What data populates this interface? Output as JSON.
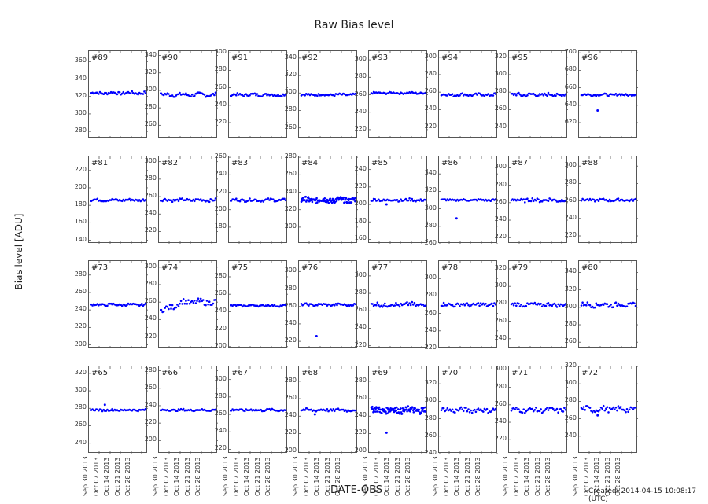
{
  "chart_data": {
    "type": "scatter",
    "title": "Raw Bias level",
    "xlabel": "DATE-OBS",
    "ylabel": "Bias level [ADU]",
    "footer": "Created: 2014-04-15 10:08:17 (UTC)",
    "x_ticks": [
      "Sep 30 2013",
      "Oct 07 2013",
      "Oct 14 2013",
      "Oct 21 2013",
      "Oct 28 2013"
    ],
    "marker_color": "#0000ff",
    "grid": false,
    "panels": [
      {
        "label": "#89",
        "yticks": [
          280,
          300,
          320,
          340,
          360
        ],
        "ylim": [
          272,
          372
        ],
        "level": 324,
        "noise": 1.5
      },
      {
        "label": "#90",
        "yticks": [
          260,
          280,
          300,
          320,
          340
        ],
        "ylim": [
          245,
          345
        ],
        "level": 295,
        "noise": 2
      },
      {
        "label": "#91",
        "yticks": [
          220,
          240,
          260,
          280,
          300
        ],
        "ylim": [
          202,
          302
        ],
        "level": 252,
        "noise": 1.5
      },
      {
        "label": "#92",
        "yticks": [
          260,
          280,
          300,
          320,
          340
        ],
        "ylim": [
          248,
          348
        ],
        "level": 298,
        "noise": 1.2
      },
      {
        "label": "#93",
        "yticks": [
          220,
          240,
          260,
          280,
          300
        ],
        "ylim": [
          210,
          310
        ],
        "level": 262,
        "noise": 1
      },
      {
        "label": "#94",
        "yticks": [
          220,
          240,
          260,
          280,
          300
        ],
        "ylim": [
          207,
          307
        ],
        "level": 257,
        "noise": 1.5
      },
      {
        "label": "#95",
        "yticks": [
          240,
          260,
          280,
          300,
          320
        ],
        "ylim": [
          227,
          327
        ],
        "level": 277,
        "noise": 2
      },
      {
        "label": "#96",
        "yticks": [
          620,
          640,
          660,
          680,
          700
        ],
        "ylim": [
          602,
          702
        ],
        "level": 652,
        "noise": 1.2,
        "outliers": [
          [
            0.3,
            634
          ]
        ]
      },
      {
        "label": "#81",
        "yticks": [
          140,
          160,
          180,
          200,
          220
        ],
        "ylim": [
          136,
          236
        ],
        "level": 186,
        "noise": 1.3
      },
      {
        "label": "#82",
        "yticks": [
          220,
          240,
          260,
          280,
          300
        ],
        "ylim": [
          206,
          306
        ],
        "level": 256,
        "noise": 1.5
      },
      {
        "label": "#83",
        "yticks": [
          180,
          200,
          220,
          240,
          260
        ],
        "ylim": [
          161,
          261
        ],
        "level": 211,
        "noise": 1.5
      },
      {
        "label": "#84",
        "yticks": [
          200,
          220,
          240,
          260,
          280
        ],
        "ylim": [
          181,
          281
        ],
        "level": 231,
        "noise": 3,
        "dense": true
      },
      {
        "label": "#85",
        "yticks": [
          160,
          180,
          200,
          220,
          240
        ],
        "ylim": [
          155,
          255
        ],
        "level": 205,
        "noise": 1.5,
        "outliers": [
          [
            0.28,
            200
          ]
        ]
      },
      {
        "label": "#86",
        "yticks": [
          260,
          280,
          300,
          320,
          340
        ],
        "ylim": [
          260,
          360
        ],
        "level": 310,
        "noise": 1,
        "outliers": [
          [
            0.28,
            289
          ]
        ]
      },
      {
        "label": "#87",
        "yticks": [
          220,
          240,
          260,
          280,
          300
        ],
        "ylim": [
          213,
          313
        ],
        "level": 263,
        "noise": 2
      },
      {
        "label": "#88",
        "yticks": [
          220,
          240,
          260,
          280,
          300
        ],
        "ylim": [
          211,
          311
        ],
        "level": 261,
        "noise": 1.3
      },
      {
        "label": "#73",
        "yticks": [
          200,
          220,
          240,
          260,
          280
        ],
        "ylim": [
          196,
          296
        ],
        "level": 246,
        "noise": 1.2
      },
      {
        "label": "#74",
        "yticks": [
          220,
          240,
          260,
          280,
          300
        ],
        "ylim": [
          207,
          307
        ],
        "level": 257,
        "noise": 3,
        "trend": [
          250,
          260
        ]
      },
      {
        "label": "#75",
        "yticks": [
          200,
          220,
          240,
          260,
          280
        ],
        "ylim": [
          198,
          298
        ],
        "level": 247,
        "noise": 1
      },
      {
        "label": "#76",
        "yticks": [
          220,
          240,
          260,
          280,
          300
        ],
        "ylim": [
          212,
          312
        ],
        "level": 262,
        "noise": 1.2,
        "outliers": [
          [
            0.28,
            226
          ]
        ]
      },
      {
        "label": "#77",
        "yticks": [
          220,
          240,
          260,
          280,
          300
        ],
        "ylim": [
          217,
          317
        ],
        "level": 267,
        "noise": 2.5
      },
      {
        "label": "#78",
        "yticks": [
          220,
          240,
          260,
          280,
          300
        ],
        "ylim": [
          220,
          320
        ],
        "level": 270,
        "noise": 2
      },
      {
        "label": "#79",
        "yticks": [
          240,
          260,
          280,
          300,
          320
        ],
        "ylim": [
          229,
          329
        ],
        "level": 279,
        "noise": 2
      },
      {
        "label": "#80",
        "yticks": [
          260,
          280,
          300,
          320,
          340
        ],
        "ylim": [
          253,
          353
        ],
        "level": 303,
        "noise": 2.5
      },
      {
        "label": "#65",
        "yticks": [
          240,
          260,
          280,
          300,
          320
        ],
        "ylim": [
          228,
          328
        ],
        "level": 278,
        "noise": 1,
        "outliers": [
          [
            0.25,
            284
          ]
        ]
      },
      {
        "label": "#66",
        "yticks": [
          200,
          220,
          240,
          260,
          280
        ],
        "ylim": [
          185,
          285
        ],
        "level": 235,
        "noise": 1
      },
      {
        "label": "#67",
        "yticks": [
          220,
          240,
          260,
          280,
          300
        ],
        "ylim": [
          215,
          315
        ],
        "level": 265,
        "noise": 1.2
      },
      {
        "label": "#68",
        "yticks": [
          200,
          220,
          240,
          260,
          280
        ],
        "ylim": [
          197,
          297
        ],
        "level": 247,
        "noise": 1.5,
        "outliers": [
          [
            0.25,
            242
          ]
        ]
      },
      {
        "label": "#69",
        "yticks": [
          200,
          220,
          240,
          260,
          280
        ],
        "ylim": [
          197,
          297
        ],
        "level": 247,
        "noise": 3.5,
        "dense": true,
        "outliers": [
          [
            0.28,
            221
          ]
        ]
      },
      {
        "label": "#70",
        "yticks": [
          240,
          260,
          280,
          300,
          320
        ],
        "ylim": [
          240,
          340
        ],
        "level": 290,
        "noise": 2.5
      },
      {
        "label": "#71",
        "yticks": [
          220,
          240,
          260,
          280,
          300
        ],
        "ylim": [
          204,
          304
        ],
        "level": 254,
        "noise": 2.5
      },
      {
        "label": "#72",
        "yticks": [
          240,
          260,
          280,
          300,
          320
        ],
        "ylim": [
          220,
          320
        ],
        "level": 271,
        "noise": 3,
        "outliers": [
          [
            0.3,
            264
          ]
        ]
      }
    ]
  }
}
